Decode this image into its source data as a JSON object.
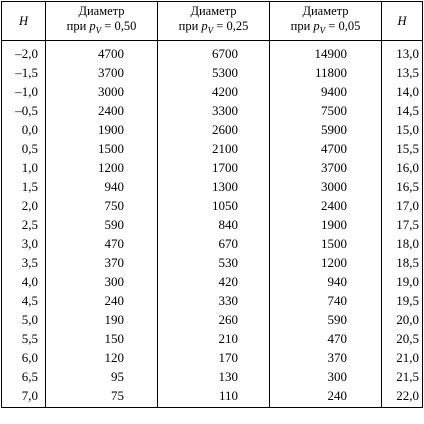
{
  "columns": [
    {
      "label": "H"
    },
    {
      "label": "Диаметр",
      "sub": "при p_V = 0,50"
    },
    {
      "label": "Диаметр",
      "sub": "при p_V = 0,25"
    },
    {
      "label": "Диаметр",
      "sub": "при p_V = 0,05"
    },
    {
      "label": "H"
    }
  ],
  "rows": [
    [
      "–2,0",
      "4700",
      "6700",
      "14900",
      "13,0"
    ],
    [
      "–1,5",
      "3700",
      "5300",
      "11800",
      "13,5"
    ],
    [
      "–1,0",
      "3000",
      "4200",
      "9400",
      "14,0"
    ],
    [
      "–0,5",
      "2400",
      "3300",
      "7500",
      "14,5"
    ],
    [
      "0,0",
      "1900",
      "2600",
      "5900",
      "15,0"
    ],
    [
      "0,5",
      "1500",
      "2100",
      "4700",
      "15,5"
    ],
    [
      "1,0",
      "1200",
      "1700",
      "3700",
      "16,0"
    ],
    [
      "1,5",
      "940",
      "1300",
      "3000",
      "16,5"
    ],
    [
      "2,0",
      "750",
      "1050",
      "2400",
      "17,0"
    ],
    [
      "2,5",
      "590",
      "840",
      "1900",
      "17,5"
    ],
    [
      "3,0",
      "470",
      "670",
      "1500",
      "18,0"
    ],
    [
      "3,5",
      "370",
      "530",
      "1200",
      "18,5"
    ],
    [
      "4,0",
      "300",
      "420",
      "940",
      "19,0"
    ],
    [
      "4,5",
      "240",
      "330",
      "740",
      "19,5"
    ],
    [
      "5,0",
      "190",
      "260",
      "590",
      "20,0"
    ],
    [
      "5,5",
      "150",
      "210",
      "470",
      "20,5"
    ],
    [
      "6,0",
      "120",
      "170",
      "370",
      "21,0"
    ],
    [
      "6,5",
      "95",
      "130",
      "300",
      "21,5"
    ],
    [
      "7,0",
      "75",
      "110",
      "240",
      "22,0"
    ]
  ]
}
